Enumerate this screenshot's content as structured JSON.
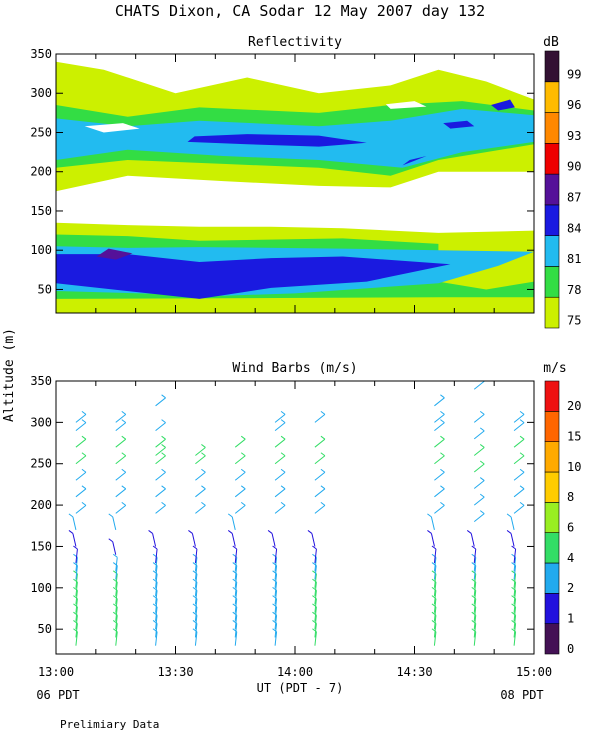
{
  "title": "CHATS Dixon, CA  Sodar  12 May 2007  day 132",
  "ylabel": "Altitude (m)",
  "xlabel": "UT  (PDT - 7)",
  "left_note": "06 PDT",
  "right_note": "08 PDT",
  "footer": "Prelimiary Data",
  "colors": {
    "c75": "#ccf000",
    "c78": "#33dd44",
    "c81": "#22bbf0",
    "c84": "#1a1ae0",
    "c87": "#551199",
    "c90": "#ee0000",
    "c93": "#ff8800",
    "c96": "#ffbb00",
    "c99": "#331133"
  },
  "chart_data": [
    {
      "type": "heatmap",
      "title": "Reflectivity",
      "x_ticks": [
        "13:00",
        "13:30",
        "14:00",
        "14:30",
        "15:00"
      ],
      "x_range_hours": [
        13.0,
        15.0
      ],
      "ylim": [
        20,
        350
      ],
      "y_ticks": [
        50,
        100,
        150,
        200,
        250,
        300,
        350
      ],
      "colorbar": {
        "unit": "dB",
        "levels": [
          75,
          78,
          81,
          84,
          87,
          90,
          93,
          96,
          99
        ]
      },
      "contour_bands": [
        {
          "level": 75,
          "region": "low",
          "altitude_range_m": [
            35,
            135
          ]
        },
        {
          "level": 78,
          "region": "low",
          "altitude_range_m": [
            40,
            120
          ]
        },
        {
          "level": 81,
          "region": "low",
          "altitude_range_m": [
            50,
            105
          ]
        },
        {
          "level": 84,
          "region": "low",
          "altitude_range_m": [
            60,
            95
          ]
        },
        {
          "level": 87,
          "region": "low",
          "altitude_range_m": [
            88,
            100
          ],
          "time_range": [
            "13:15",
            "13:25"
          ]
        },
        {
          "level": 75,
          "region": "upper",
          "altitude_range_m": [
            180,
            330
          ]
        },
        {
          "level": 78,
          "region": "upper",
          "altitude_range_m": [
            200,
            290
          ]
        },
        {
          "level": 81,
          "region": "upper",
          "altitude_range_m": [
            205,
            280
          ]
        },
        {
          "level": 84,
          "region": "upper",
          "altitude_range_m": [
            225,
            250
          ],
          "time_range": [
            "13:35",
            "14:20"
          ]
        }
      ]
    },
    {
      "type": "scatter",
      "title": "Wind Barbs (m/s)",
      "x_ticks": [
        "13:00",
        "13:30",
        "14:00",
        "14:30",
        "15:00"
      ],
      "x_range_hours": [
        13.0,
        15.0
      ],
      "ylim": [
        20,
        350
      ],
      "y_ticks": [
        50,
        100,
        150,
        200,
        250,
        300,
        350
      ],
      "colorbar": {
        "unit": "m/s",
        "levels": [
          0,
          1,
          2,
          4,
          6,
          8,
          10,
          15,
          20
        ]
      },
      "columns": [
        {
          "time": "13:05",
          "heights": [
            30,
            40,
            50,
            60,
            70,
            80,
            90,
            100,
            110,
            120,
            130,
            150,
            170,
            190,
            210,
            230,
            250,
            270,
            290,
            300
          ]
        },
        {
          "time": "13:15",
          "heights": [
            30,
            40,
            50,
            60,
            70,
            80,
            90,
            100,
            110,
            120,
            140,
            170,
            190,
            210,
            230,
            250,
            270,
            290,
            300
          ]
        },
        {
          "time": "13:25",
          "heights": [
            30,
            40,
            50,
            60,
            70,
            80,
            90,
            100,
            110,
            120,
            130,
            150,
            190,
            210,
            230,
            250,
            260,
            270,
            290,
            320
          ]
        },
        {
          "time": "13:35",
          "heights": [
            30,
            40,
            50,
            60,
            70,
            80,
            90,
            100,
            110,
            120,
            130,
            150,
            190,
            210,
            230,
            250,
            260
          ]
        },
        {
          "time": "13:45",
          "heights": [
            30,
            40,
            50,
            60,
            70,
            80,
            90,
            100,
            110,
            120,
            130,
            150,
            170,
            190,
            210,
            230,
            250,
            270
          ]
        },
        {
          "time": "13:55",
          "heights": [
            30,
            40,
            50,
            60,
            70,
            80,
            90,
            100,
            110,
            120,
            130,
            150,
            190,
            210,
            230,
            250,
            270,
            290,
            300
          ]
        },
        {
          "time": "14:05",
          "heights": [
            30,
            40,
            50,
            60,
            70,
            80,
            90,
            100,
            110,
            120,
            130,
            150,
            190,
            210,
            230,
            250,
            270,
            300
          ]
        },
        {
          "time": "14:35",
          "heights": [
            30,
            40,
            50,
            60,
            70,
            80,
            90,
            100,
            110,
            120,
            130,
            150,
            170,
            190,
            210,
            230,
            250,
            270,
            290,
            300,
            320
          ]
        },
        {
          "time": "14:45",
          "heights": [
            30,
            40,
            50,
            60,
            70,
            80,
            90,
            100,
            110,
            120,
            130,
            150,
            180,
            200,
            220,
            240,
            260,
            280,
            300,
            340
          ]
        },
        {
          "time": "14:55",
          "heights": [
            30,
            40,
            50,
            60,
            70,
            80,
            90,
            100,
            110,
            120,
            130,
            150,
            170,
            190,
            210,
            230,
            250,
            270,
            290,
            300
          ]
        }
      ]
    }
  ]
}
